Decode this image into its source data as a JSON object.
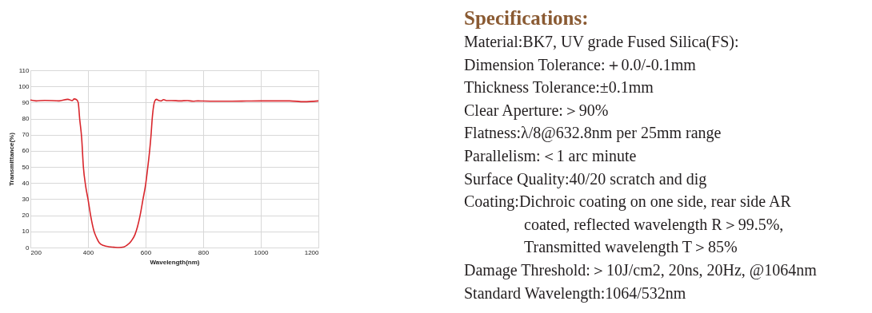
{
  "chart_data": [
    {
      "type": "line",
      "xlabel": "Wavelength(nm)",
      "ylabel": "Transmittance(%)",
      "xlim": [
        200,
        1200
      ],
      "ylim": [
        0,
        110
      ],
      "xticks": [
        200,
        400,
        600,
        800,
        1000,
        1200
      ],
      "yticks": [
        0,
        10,
        20,
        30,
        40,
        50,
        60,
        70,
        80,
        90,
        100,
        110
      ],
      "grid": true,
      "marker": "none",
      "line_style": "solid",
      "series": [
        {
          "color": "#d9262c",
          "x": [
            200,
            220,
            250,
            300,
            330,
            345,
            352,
            360,
            366,
            371,
            378,
            384,
            392,
            400,
            410,
            421,
            430,
            439,
            455,
            472,
            490,
            508,
            525,
            536,
            550,
            563,
            572,
            581,
            591,
            600,
            607,
            614,
            619,
            623,
            628,
            632,
            638,
            645,
            654,
            662,
            672,
            690,
            720,
            745,
            765,
            782,
            800,
            850,
            900,
            950,
            1000,
            1050,
            1100,
            1150,
            1200
          ],
          "values": [
            91.5,
            91,
            91.3,
            91,
            92,
            91.2,
            92.2,
            91.8,
            90,
            80,
            68,
            50,
            38,
            30,
            19,
            10,
            6,
            3,
            1.2,
            0.5,
            0.2,
            0,
            0.4,
            1.5,
            4,
            8,
            13,
            20,
            30,
            39,
            49,
            60,
            70,
            80,
            88,
            91,
            92,
            91.3,
            91,
            91.8,
            91.2,
            91.2,
            91,
            91.2,
            90.8,
            91,
            90.9,
            90.8,
            90.8,
            90.9,
            91,
            91,
            91,
            90.5,
            91
          ]
        }
      ]
    },
    {
      "type": "other",
      "title": "Specifications:",
      "annotations": [
        "Material:BK7, UV grade Fused Silica(FS):",
        "Dimension Tolerance:＋0.0/-0.1mm",
        "Thickness Tolerance:±0.1mm",
        "Clear Aperture:＞90%",
        "Flatness:λ/8@632.8nm per 25mm range",
        "Parallelism:＜1 arc minute",
        "Surface Quality:40/20 scratch and dig",
        "Coating:Dichroic coating on one side, rear side AR\ncoated, reflected wavelength R＞99.5%,\nTransmitted wavelength T＞85%",
        "Damage Threshold:＞10J/cm2, 20ns, 20Hz, @1064nm",
        "Standard Wavelength:1064/532nm"
      ]
    }
  ]
}
